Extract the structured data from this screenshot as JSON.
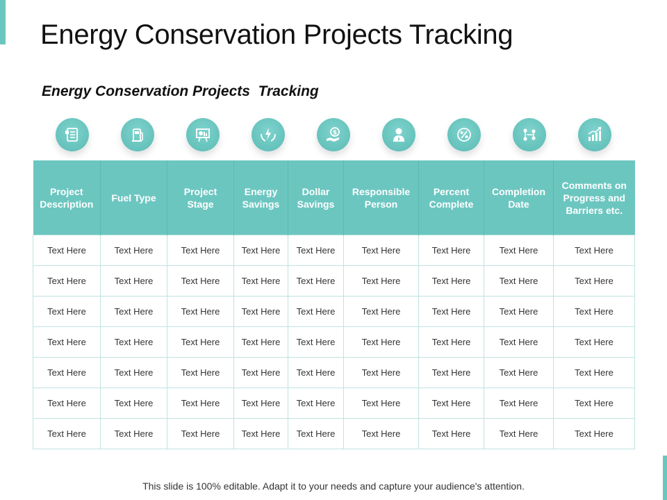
{
  "slide": {
    "title": "Energy Conservation Projects Tracking",
    "subtitle": "Energy Conservation Projects  Tracking",
    "footer": "This slide is 100% editable. Adapt it to your needs and capture your audience's attention.",
    "accent_color": "#6cc6c0"
  },
  "icons": [
    {
      "name": "document-list-icon"
    },
    {
      "name": "fuel-pump-icon"
    },
    {
      "name": "presentation-board-icon"
    },
    {
      "name": "energy-hands-icon"
    },
    {
      "name": "dollar-hand-icon"
    },
    {
      "name": "person-icon"
    },
    {
      "name": "percent-icon"
    },
    {
      "name": "flow-chart-icon"
    },
    {
      "name": "bar-chart-growth-icon"
    }
  ],
  "table": {
    "headers": [
      "Project Description",
      "Fuel Type",
      "Project Stage",
      "Energy Savings",
      "Dollar Savings",
      "Responsible Person",
      "Percent Complete",
      "Completion Date",
      "Comments on Progress and Barriers etc."
    ],
    "rows": [
      [
        "Text Here",
        "Text Here",
        "Text Here",
        "Text Here",
        "Text Here",
        "Text Here",
        "Text Here",
        "Text Here",
        "Text Here"
      ],
      [
        "Text Here",
        "Text Here",
        "Text Here",
        "Text Here",
        "Text Here",
        "Text Here",
        "Text Here",
        "Text Here",
        "Text Here"
      ],
      [
        "Text Here",
        "Text Here",
        "Text Here",
        "Text Here",
        "Text Here",
        "Text Here",
        "Text Here",
        "Text Here",
        "Text Here"
      ],
      [
        "Text Here",
        "Text Here",
        "Text Here",
        "Text Here",
        "Text Here",
        "Text Here",
        "Text Here",
        "Text Here",
        "Text Here"
      ],
      [
        "Text Here",
        "Text Here",
        "Text Here",
        "Text Here",
        "Text Here",
        "Text Here",
        "Text Here",
        "Text Here",
        "Text Here"
      ],
      [
        "Text Here",
        "Text Here",
        "Text Here",
        "Text Here",
        "Text Here",
        "Text Here",
        "Text Here",
        "Text Here",
        "Text Here"
      ],
      [
        "Text Here",
        "Text Here",
        "Text Here",
        "Text Here",
        "Text Here",
        "Text Here",
        "Text Here",
        "Text Here",
        "Text Here"
      ]
    ]
  }
}
